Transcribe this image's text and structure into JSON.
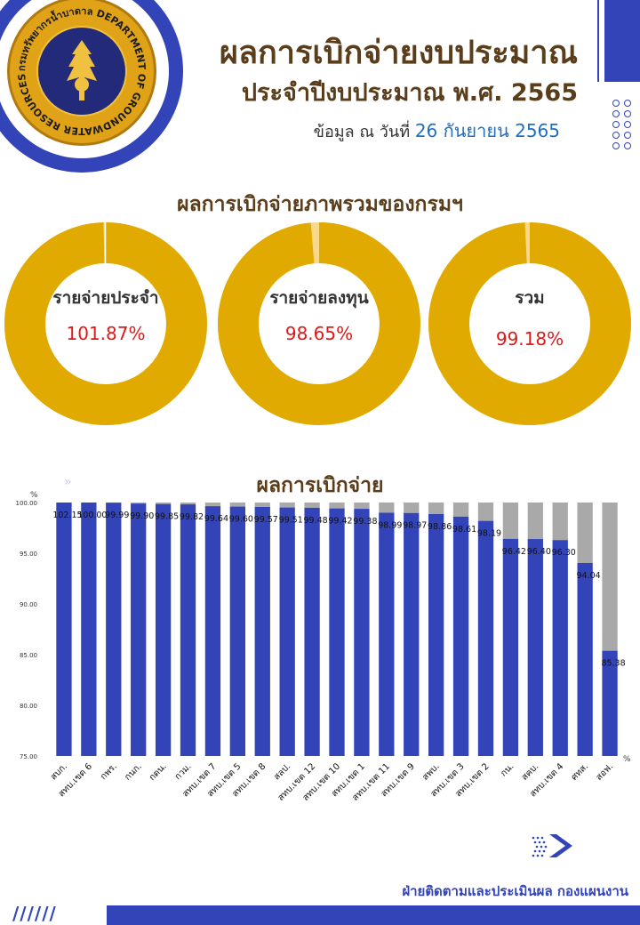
{
  "header": {
    "logo_text": "กรมทรัพยากรน้ำบาดาล DEPARTMENT OF GROUNDWATER RESOURCES",
    "title": "ผลการเบิกจ่ายงบประมาณ",
    "subtitle": "ประจำปีงบประมาณ พ.ศ. 2565",
    "date_prefix": "ข้อมูล ณ วันที่",
    "date_value": "26 กันยายน 2565"
  },
  "overview": {
    "heading": "ผลการเบิกจ่ายภาพรวมของกรมฯ",
    "donuts": [
      {
        "label": "รายจ่ายประจำ",
        "value_text": "101.87%",
        "value": 101.87
      },
      {
        "label": "รายจ่ายลงทุน",
        "value_text": "98.65%",
        "value": 98.65
      },
      {
        "label": "รวม",
        "value_text": "99.18%",
        "value": 99.18
      }
    ]
  },
  "chart_section": {
    "heading": "ผลการเบิกจ่าย"
  },
  "chart_data": {
    "type": "bar",
    "ylabel": "%",
    "xunit": "%",
    "ylim": [
      75,
      100
    ],
    "yticks": [
      "100.00",
      "95.00",
      "90.00",
      "85.00",
      "80.00",
      "75.00"
    ],
    "categories": [
      "สบก.",
      "สทบ.เขต 6",
      "กพร.",
      "กนก.",
      "กตน.",
      "กวม.",
      "สทบ.เขต 7",
      "สทบ.เขต 5",
      "สทบ.เขต 8",
      "สลป.",
      "สทบ.เขต 12",
      "สทบ.เขต 10",
      "สทบ.เขต 1",
      "สทบ.เขต 11",
      "สทบ.เขต 9",
      "สพบ.",
      "สทบ.เขต 3",
      "สทบ.เขต 2",
      "กน.",
      "สคบ.",
      "สทบ.เขต 4",
      "ศทส.",
      "สอฟ."
    ],
    "values": [
      102.15,
      100.0,
      99.99,
      99.9,
      99.85,
      99.82,
      99.64,
      99.6,
      99.57,
      99.51,
      99.48,
      99.42,
      99.38,
      98.99,
      98.97,
      98.86,
      98.61,
      98.19,
      96.42,
      96.4,
      96.3,
      94.04,
      85.38
    ],
    "value_labels": [
      "102.15",
      "100.00",
      "99.99",
      "99.90",
      "99.85",
      "99.82",
      "99.64",
      "99.60",
      "99.57",
      "99.51",
      "99.48",
      "99.42",
      "99.38",
      "98.99",
      "98.97",
      "98.86",
      "98.61",
      "98.19",
      "96.42",
      "96.40",
      "96.30",
      "94.04",
      "85.38"
    ],
    "bar_color": "#3344b8",
    "remainder_color": "#a9a9a9"
  },
  "colors": {
    "brand_blue": "#3344b8",
    "title_brown": "#5a3d1b",
    "donut_gold": "#e0aa00",
    "donut_light": "#f8d88a",
    "value_red": "#e01818",
    "date_blue": "#1f6fc0"
  },
  "footer": {
    "text": "ฝ่ายติดตามและประเมินผล  กองแผนงาน",
    "slashes": "//////"
  }
}
